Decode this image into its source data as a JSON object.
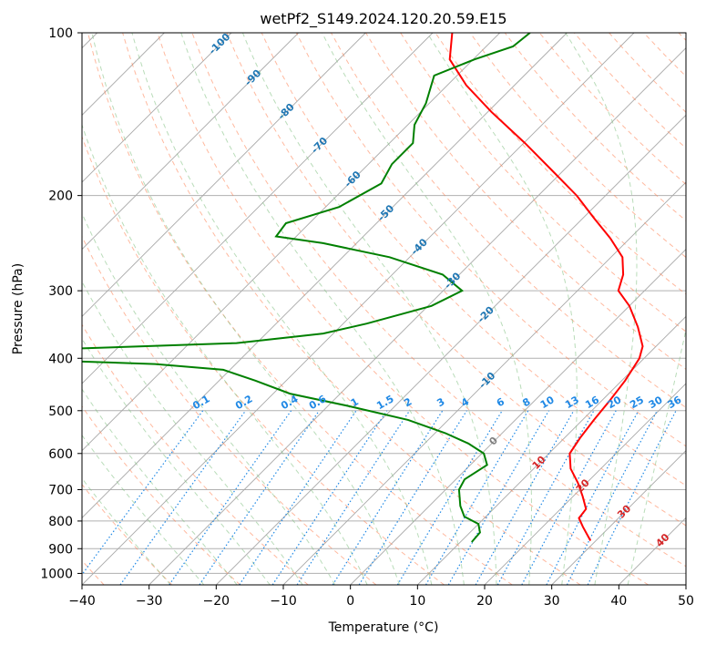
{
  "chart_data": {
    "type": "line",
    "title": "wetPf2_S149.2024.120.20.59.E15",
    "xlabel": "Temperature (°C)",
    "ylabel": "Pressure (hPa)",
    "xlim": [
      -40,
      50
    ],
    "ylim": [
      1050,
      100
    ],
    "y_scale": "log",
    "grid": true,
    "x_ticks": [
      -40,
      -30,
      -20,
      -10,
      0,
      10,
      20,
      30,
      40,
      50
    ],
    "x_tick_labels": [
      "−40",
      "−30",
      "−20",
      "−10",
      "0",
      "10",
      "20",
      "30",
      "40",
      "50"
    ],
    "y_ticks": [
      100,
      200,
      300,
      400,
      500,
      600,
      700,
      800,
      900,
      1000
    ],
    "y_tick_labels": [
      "100",
      "200",
      "300",
      "400",
      "500",
      "600",
      "700",
      "800",
      "900",
      "1000"
    ],
    "skew": "skew-T",
    "colors": {
      "temperature": "#ff0000",
      "dewpoint": "#008000",
      "isotherm": "#a0a0a0",
      "dry_adiabat": "#ff7f50",
      "moist_adiabat": "#7fbf7f",
      "mixing_ratio": "#1e88e5",
      "isotherm_label": "#1f77b4",
      "dry_label": "#d62728"
    },
    "series": [
      {
        "name": "temperature",
        "color": "#ff0000",
        "points": [
          {
            "p": 870,
            "t": 29.2
          },
          {
            "p": 820,
            "t": 26.0
          },
          {
            "p": 790,
            "t": 24.1
          },
          {
            "p": 760,
            "t": 23.8
          },
          {
            "p": 720,
            "t": 21.4
          },
          {
            "p": 680,
            "t": 18.7
          },
          {
            "p": 640,
            "t": 15.5
          },
          {
            "p": 600,
            "t": 13.1
          },
          {
            "p": 560,
            "t": 12.3
          },
          {
            "p": 520,
            "t": 11.7
          },
          {
            "p": 480,
            "t": 11.2
          },
          {
            "p": 440,
            "t": 10.5
          },
          {
            "p": 400,
            "t": 9.3
          },
          {
            "p": 380,
            "t": 8.0
          },
          {
            "p": 350,
            "t": 4.4
          },
          {
            "p": 320,
            "t": 0.0
          },
          {
            "p": 300,
            "t": -3.9
          },
          {
            "p": 280,
            "t": -5.6
          },
          {
            "p": 260,
            "t": -8.3
          },
          {
            "p": 240,
            "t": -12.9
          },
          {
            "p": 220,
            "t": -18.4
          },
          {
            "p": 200,
            "t": -24.3
          },
          {
            "p": 180,
            "t": -31.6
          },
          {
            "p": 160,
            "t": -39.8
          },
          {
            "p": 140,
            "t": -49.5
          },
          {
            "p": 125,
            "t": -57.2
          },
          {
            "p": 112,
            "t": -63.5
          },
          {
            "p": 100,
            "t": -67.1
          }
        ]
      },
      {
        "name": "dewpoint",
        "color": "#008000",
        "points": [
          {
            "p": 875,
            "t": 11.7
          },
          {
            "p": 840,
            "t": 11.5
          },
          {
            "p": 810,
            "t": 10.0
          },
          {
            "p": 785,
            "t": 6.8
          },
          {
            "p": 750,
            "t": 4.6
          },
          {
            "p": 700,
            "t": 2.0
          },
          {
            "p": 670,
            "t": 1.3
          },
          {
            "p": 630,
            "t": 2.5
          },
          {
            "p": 600,
            "t": 0.3
          },
          {
            "p": 575,
            "t": -3.5
          },
          {
            "p": 550,
            "t": -8.5
          },
          {
            "p": 520,
            "t": -16.0
          },
          {
            "p": 490,
            "t": -27.0
          },
          {
            "p": 465,
            "t": -37.5
          },
          {
            "p": 440,
            "t": -44.6
          },
          {
            "p": 420,
            "t": -51.0
          },
          {
            "p": 410,
            "t": -62.0
          },
          {
            "p": 405,
            "t": -75.0
          },
          {
            "p": 385,
            "t": -79.0
          },
          {
            "p": 375,
            "t": -53.0
          },
          {
            "p": 360,
            "t": -41.5
          },
          {
            "p": 345,
            "t": -36.5
          },
          {
            "p": 320,
            "t": -29.5
          },
          {
            "p": 300,
            "t": -27.2
          },
          {
            "p": 280,
            "t": -32.5
          },
          {
            "p": 260,
            "t": -43.0
          },
          {
            "p": 245,
            "t": -55.0
          },
          {
            "p": 238,
            "t": -63.0
          },
          {
            "p": 225,
            "t": -63.5
          },
          {
            "p": 210,
            "t": -58.0
          },
          {
            "p": 190,
            "t": -55.2
          },
          {
            "p": 175,
            "t": -56.5
          },
          {
            "p": 160,
            "t": -56.5
          },
          {
            "p": 148,
            "t": -59.0
          },
          {
            "p": 135,
            "t": -60.5
          },
          {
            "p": 120,
            "t": -63.4
          },
          {
            "p": 112,
            "t": -59.8
          },
          {
            "p": 106,
            "t": -56.0
          },
          {
            "p": 100,
            "t": -55.5
          }
        ]
      }
    ],
    "isotherm_labels": [
      "-100",
      "-90",
      "-80",
      "-70",
      "-60",
      "-50",
      "-40",
      "-30",
      "-20",
      "-10",
      "0",
      "10",
      "20",
      "30",
      "40"
    ],
    "mixing_ratio_labels": [
      "0.1",
      "0.2",
      "0.4",
      "0.6",
      "1",
      "1.5",
      "2",
      "3",
      "4",
      "6",
      "8",
      "10",
      "13",
      "16",
      "20",
      "25",
      "30",
      "36"
    ]
  }
}
